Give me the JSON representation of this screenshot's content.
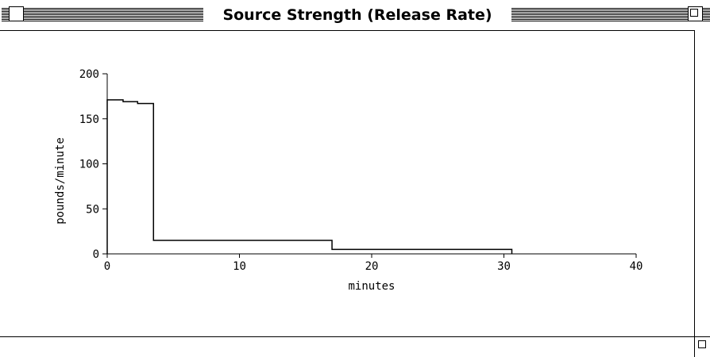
{
  "window": {
    "title": "Source Strength (Release Rate)"
  },
  "chart_data": {
    "type": "line",
    "step": true,
    "xlabel": "minutes",
    "ylabel": "pounds/minute",
    "xlim": [
      0,
      40
    ],
    "ylim": [
      0,
      200
    ],
    "xticks": [
      0,
      10,
      20,
      30,
      40
    ],
    "yticks": [
      0,
      50,
      100,
      150,
      200
    ],
    "grid": false,
    "series": [
      {
        "steps": [
          {
            "x_start": 0,
            "x_end": 1.2,
            "y": 171
          },
          {
            "x_start": 1.2,
            "x_end": 2.3,
            "y": 169
          },
          {
            "x_start": 2.3,
            "x_end": 3.5,
            "y": 167
          },
          {
            "x_start": 3.5,
            "x_end": 17,
            "y": 15
          },
          {
            "x_start": 17,
            "x_end": 30.6,
            "y": 5
          }
        ]
      }
    ],
    "line_color": "#000000"
  }
}
